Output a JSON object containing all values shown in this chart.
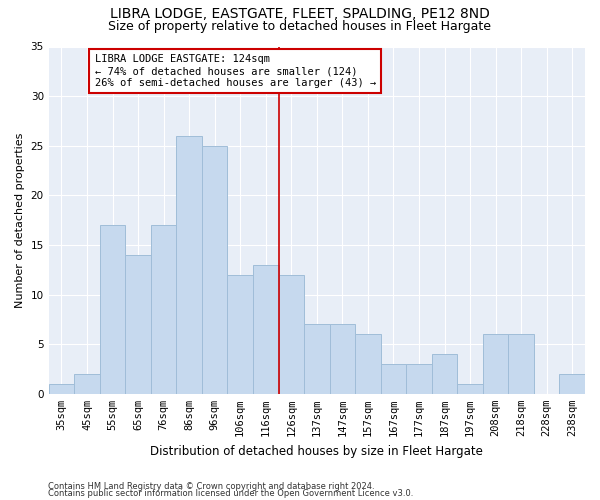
{
  "title1": "LIBRA LODGE, EASTGATE, FLEET, SPALDING, PE12 8ND",
  "title2": "Size of property relative to detached houses in Fleet Hargate",
  "xlabel": "Distribution of detached houses by size in Fleet Hargate",
  "ylabel": "Number of detached properties",
  "categories": [
    "35sqm",
    "45sqm",
    "55sqm",
    "65sqm",
    "76sqm",
    "86sqm",
    "96sqm",
    "106sqm",
    "116sqm",
    "126sqm",
    "137sqm",
    "147sqm",
    "157sqm",
    "167sqm",
    "177sqm",
    "187sqm",
    "197sqm",
    "208sqm",
    "218sqm",
    "228sqm",
    "238sqm"
  ],
  "values": [
    1,
    2,
    17,
    14,
    17,
    26,
    25,
    12,
    13,
    12,
    7,
    7,
    6,
    3,
    3,
    4,
    1,
    6,
    6,
    0,
    2
  ],
  "bar_color": "#c6d9ee",
  "bar_edge_color": "#a0bdd8",
  "vline_color": "#cc0000",
  "vline_x_index": 8.5,
  "annotation_title": "LIBRA LODGE EASTGATE: 124sqm",
  "annotation_line1": "← 74% of detached houses are smaller (124)",
  "annotation_line2": "26% of semi-detached houses are larger (43) →",
  "annotation_box_facecolor": "#ffffff",
  "annotation_box_edgecolor": "#cc0000",
  "footer1": "Contains HM Land Registry data © Crown copyright and database right 2024.",
  "footer2": "Contains public sector information licensed under the Open Government Licence v3.0.",
  "ylim": [
    0,
    35
  ],
  "yticks": [
    0,
    5,
    10,
    15,
    20,
    25,
    30,
    35
  ],
  "plot_bg_color": "#e8eef7",
  "title1_fontsize": 10,
  "title2_fontsize": 9,
  "xlabel_fontsize": 8.5,
  "ylabel_fontsize": 8,
  "tick_fontsize": 7.5,
  "footer_fontsize": 6,
  "ann_fontsize": 7.5
}
